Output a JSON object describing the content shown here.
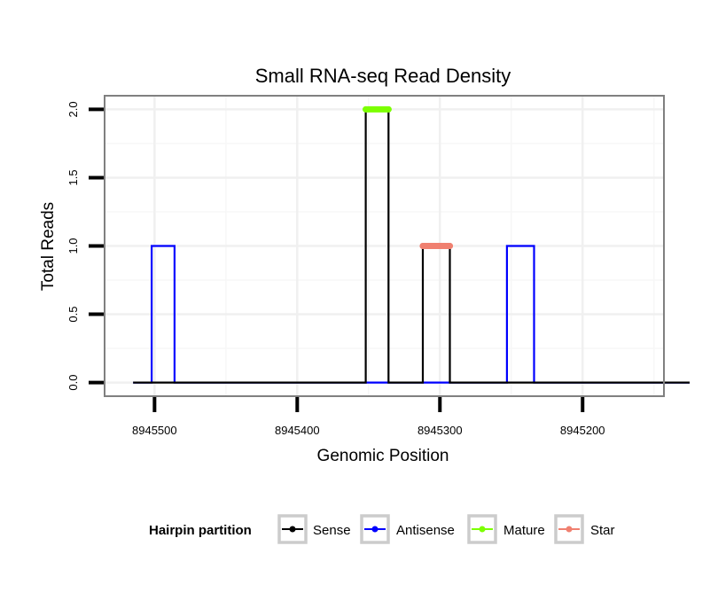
{
  "chart_data": {
    "type": "line",
    "title": "Small RNA-seq Read Density",
    "xlabel": "Genomic Position",
    "ylabel": "Total Reads",
    "x_reversed": true,
    "xlim": [
      8945535,
      8945143
    ],
    "ylim": [
      -0.1,
      2.1
    ],
    "x_ticks": [
      8945500,
      8945400,
      8945300,
      8945200
    ],
    "x_tick_labels": [
      "8945500",
      "8945400",
      "8945300",
      "8945200"
    ],
    "y_ticks": [
      0,
      0.5,
      1,
      1.5,
      2
    ],
    "y_tick_labels": [
      "0.0",
      "0.5",
      "1.0",
      "1.5",
      "2.0"
    ],
    "grid": true,
    "legend": {
      "title": "Hairpin partition",
      "position": "bottom",
      "entries": [
        "Sense",
        "Antisense",
        "Mature",
        "Star"
      ]
    },
    "series": [
      {
        "name": "Sense",
        "color": "#000000",
        "x": [
          8945515,
          8945352,
          8945352,
          8945336,
          8945336,
          8945312,
          8945312,
          8945293,
          8945293,
          8945125
        ],
        "values": [
          0,
          0,
          2,
          2,
          0,
          0,
          1,
          1,
          0,
          0
        ]
      },
      {
        "name": "Antisense",
        "color": "#0000ff",
        "x": [
          8945515,
          8945502,
          8945502,
          8945486,
          8945486,
          8945253,
          8945253,
          8945234,
          8945234,
          8945125
        ],
        "values": [
          0,
          0,
          1,
          1,
          0,
          0,
          1,
          1,
          0,
          0
        ]
      },
      {
        "name": "Mature",
        "color": "#7cff00",
        "x": [
          8945352,
          8945336
        ],
        "values": [
          2,
          2
        ]
      },
      {
        "name": "Star",
        "color": "#f08070",
        "x": [
          8945312,
          8945293
        ],
        "values": [
          1,
          1
        ]
      }
    ]
  }
}
